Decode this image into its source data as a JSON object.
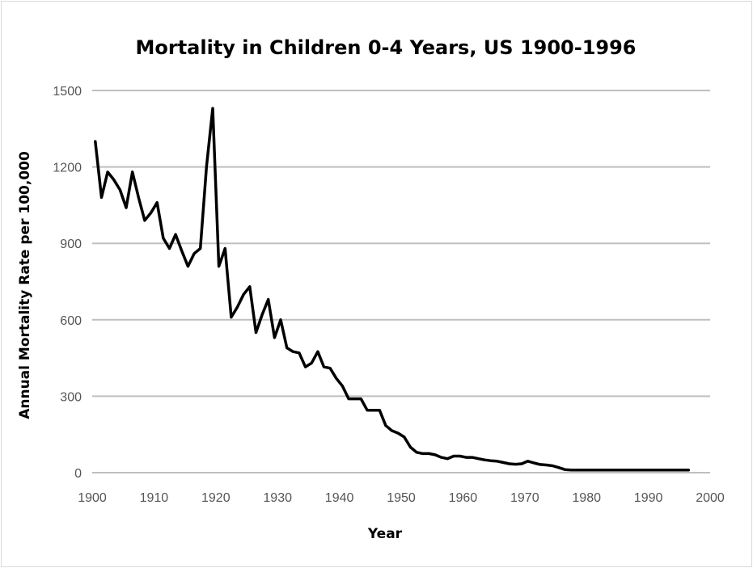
{
  "chart_data": {
    "type": "line",
    "title": "Mortality in Children 0-4 Years, US 1900-1996",
    "xlabel": "Year",
    "ylabel": "Annual Mortality Rate per 100,000",
    "xlim": [
      1900,
      2000
    ],
    "ylim": [
      0,
      1500
    ],
    "x_ticks": [
      "1900",
      "1910",
      "1920",
      "1930",
      "1940",
      "1950",
      "1960",
      "1970",
      "1980",
      "1990",
      "2000"
    ],
    "y_ticks": [
      "0",
      "300",
      "600",
      "900",
      "1200",
      "1500"
    ],
    "grid": "horizontal",
    "legend": "none",
    "series_color": "#000000",
    "grid_color": "#bfbfbf",
    "series": [
      {
        "x": [
          1900.5,
          1901.5,
          1902.5,
          1903.5,
          1904.5,
          1905.5,
          1906.5,
          1907.5,
          1908.5,
          1909.5,
          1910.5,
          1911.5,
          1912.5,
          1913.5,
          1914.5,
          1915.5,
          1916.5,
          1917.5,
          1918.5,
          1919.5,
          1920.5,
          1921.5,
          1922.5,
          1923.5,
          1924.5,
          1925.5,
          1926.5,
          1927.5,
          1928.5,
          1929.5,
          1930.5,
          1931.5,
          1932.5,
          1933.5,
          1934.5,
          1935.5,
          1936.5,
          1937.5,
          1938.5,
          1939.5,
          1940.5,
          1941.5,
          1942.5,
          1943.5,
          1944.5,
          1945.5,
          1946.5,
          1947.5,
          1948.5,
          1949.5,
          1950.5,
          1951.5,
          1952.5,
          1953.5,
          1954.5,
          1955.5,
          1956.5,
          1957.5,
          1958.5,
          1959.5,
          1960.5,
          1961.5,
          1962.5,
          1963.5,
          1964.5,
          1965.5,
          1966.5,
          1967.5,
          1968.5,
          1969.5,
          1970.5,
          1971.5,
          1972.5,
          1973.5,
          1974.5,
          1975.5,
          1976.5,
          1977.5,
          1978.5,
          1979.5,
          1980.5,
          1981.5,
          1982.5,
          1983.5,
          1984.5,
          1985.5,
          1986.5,
          1987.5,
          1988.5,
          1989.5,
          1990.5,
          1991.5,
          1992.5,
          1993.5,
          1994.5,
          1995.5,
          1996.5
        ],
        "values": [
          1300,
          1080,
          1180,
          1150,
          1110,
          1040,
          1180,
          1080,
          990,
          1020,
          1060,
          920,
          880,
          935,
          870,
          810,
          860,
          880,
          1200,
          1430,
          810,
          880,
          610,
          650,
          700,
          730,
          550,
          620,
          680,
          530,
          600,
          490,
          475,
          470,
          415,
          430,
          475,
          415,
          410,
          370,
          340,
          290,
          290,
          290,
          245,
          245,
          245,
          185,
          165,
          155,
          140,
          100,
          80,
          75,
          75,
          70,
          60,
          55,
          65,
          65,
          60,
          60,
          55,
          50,
          47,
          45,
          40,
          35,
          33,
          35,
          45,
          38,
          32,
          30,
          27,
          20,
          12,
          10,
          10,
          10,
          10,
          10,
          10,
          10,
          10,
          10,
          10,
          10,
          10,
          10,
          10,
          10,
          10,
          10,
          10,
          10,
          10
        ]
      }
    ]
  }
}
